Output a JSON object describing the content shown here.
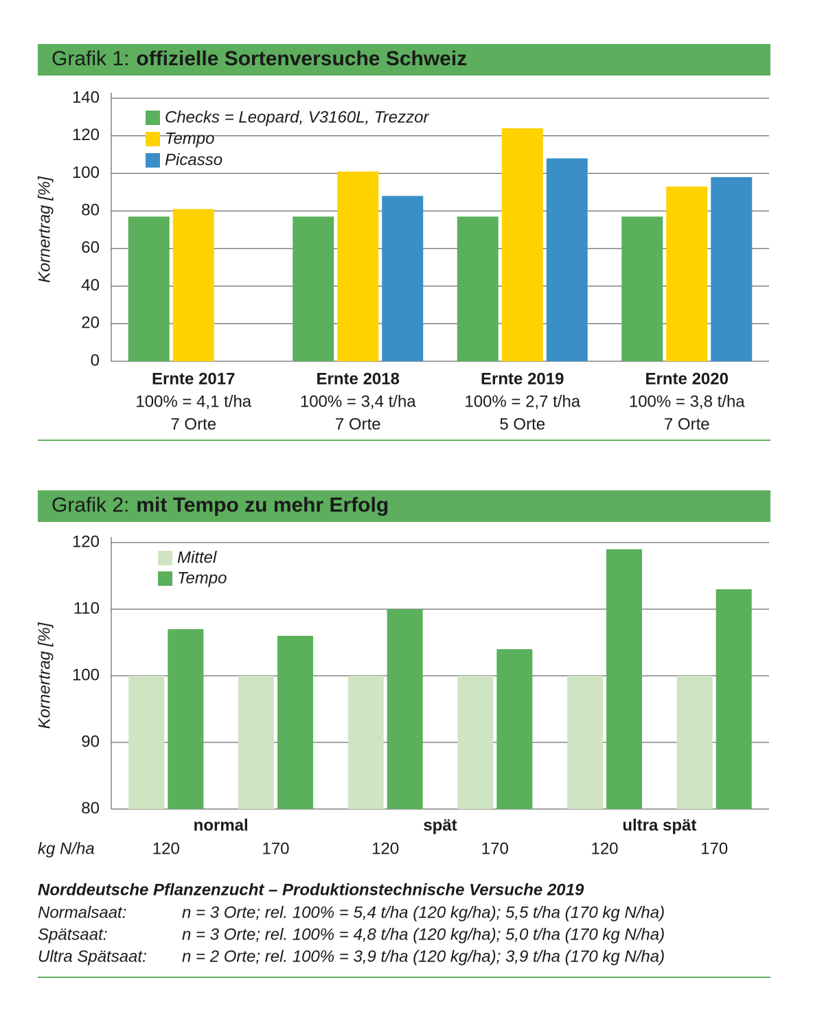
{
  "chart_data": [
    {
      "type": "bar",
      "label": "Grafik 1:",
      "title": "offizielle Sortenversuche Schweiz",
      "ylabel": "Kornertrag [%]",
      "categories": [
        "Ernte 2017",
        "Ernte 2018",
        "Ernte 2019",
        "Ernte 2020"
      ],
      "category_notes": [
        [
          "100% = 4,1 t/ha",
          "7 Orte"
        ],
        [
          "100% = 3,4 t/ha",
          "7 Orte"
        ],
        [
          "100% = 2,7 t/ha",
          "5 Orte"
        ],
        [
          "100% = 3,8 t/ha",
          "7 Orte"
        ]
      ],
      "series": [
        {
          "name": "Checks = Leopard, V3160L, Trezzor",
          "color": "#5bb05b",
          "values": [
            77,
            77,
            77,
            77
          ]
        },
        {
          "name": "Tempo",
          "color": "#ffd200",
          "values": [
            81,
            101,
            124,
            93
          ]
        },
        {
          "name": "Picasso",
          "color": "#3b8fc8",
          "values": [
            null,
            88,
            108,
            98
          ]
        }
      ],
      "ylim": [
        0,
        140
      ],
      "yticks": [
        0,
        20,
        40,
        60,
        80,
        100,
        120,
        140
      ],
      "grid": true
    },
    {
      "type": "bar",
      "label": "Grafik 2:",
      "title": "mit Tempo zu mehr Erfolg",
      "ylabel": "Kornertrag [%]",
      "xlabel": "kg N/ha",
      "groups": [
        "normal",
        "spät",
        "ultra spät"
      ],
      "categories": [
        "120",
        "170",
        "120",
        "170",
        "120",
        "170"
      ],
      "series": [
        {
          "name": "Mittel",
          "color": "#cfe4c3",
          "values": [
            100,
            100,
            100,
            100,
            100,
            100
          ]
        },
        {
          "name": "Tempo",
          "color": "#5bb05b",
          "values": [
            107,
            106,
            110,
            104,
            119,
            113
          ]
        }
      ],
      "ylim": [
        80,
        120
      ],
      "yticks": [
        80,
        90,
        100,
        110,
        120
      ],
      "grid": true
    }
  ],
  "notes": {
    "title": "Norddeutsche Pflanzenzucht – Produktionstechnische Versuche 2019",
    "rows": [
      [
        "Normalsaat:",
        "n = 3 Orte; rel. 100% = 5,4 t/ha (120 kg/ha); 5,5 t/ha (170 kg N/ha)"
      ],
      [
        "Spätsaat:",
        "n = 3 Orte; rel. 100% = 4,8 t/ha (120 kg/ha); 5,0 t/ha (170 kg N/ha)"
      ],
      [
        "Ultra Spätsaat:",
        "n = 2 Orte; rel. 100% = 3,9 t/ha (120 kg/ha); 3,9 t/ha (170 kg N/ha)"
      ]
    ]
  }
}
